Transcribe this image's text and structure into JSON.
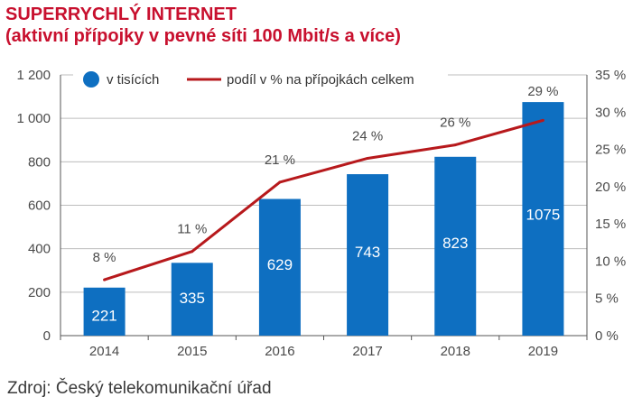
{
  "title_line1": "SUPERRYCHLÝ INTERNET",
  "title_line2": "(aktivní přípojky v pevné síti 100 Mbit/s a více)",
  "source": "Zdroj: Český telekomunikační úřad",
  "colors": {
    "bar": "#0e6fc1",
    "line": "#b7191c",
    "title": "#c8102e",
    "grid": "#bdbdbd"
  },
  "chart_data": {
    "type": "bar+line",
    "categories": [
      "2014",
      "2015",
      "2016",
      "2017",
      "2018",
      "2019"
    ],
    "series": [
      {
        "name": "v tisících",
        "type": "bar",
        "axis": "left",
        "values": [
          221,
          335,
          629,
          743,
          823,
          1075
        ],
        "labels": [
          "221",
          "335",
          "629",
          "743",
          "823",
          "1075"
        ]
      },
      {
        "name": "podíl v % na přípojkách celkem",
        "type": "line",
        "axis": "right",
        "values": [
          7.5,
          11.3,
          20.6,
          23.8,
          25.6,
          28.9
        ],
        "labels": [
          "8 %",
          "11 %",
          "21 %",
          "24 %",
          "26 %",
          "29 %"
        ]
      }
    ],
    "y_left": {
      "ticks": [
        0,
        200,
        400,
        600,
        800,
        1000,
        1200
      ],
      "tick_labels": [
        "0",
        "200",
        "400",
        "600",
        "800",
        "1 000",
        "1 200"
      ],
      "range": [
        0,
        1200
      ]
    },
    "y_right": {
      "ticks": [
        0,
        5,
        10,
        15,
        20,
        25,
        30,
        35
      ],
      "tick_labels": [
        "0 %",
        "5 %",
        "10 %",
        "15 %",
        "20 %",
        "25 %",
        "30 %",
        "35 %"
      ],
      "range": [
        0,
        35
      ]
    },
    "grid": true,
    "legend_position": "top-left"
  }
}
